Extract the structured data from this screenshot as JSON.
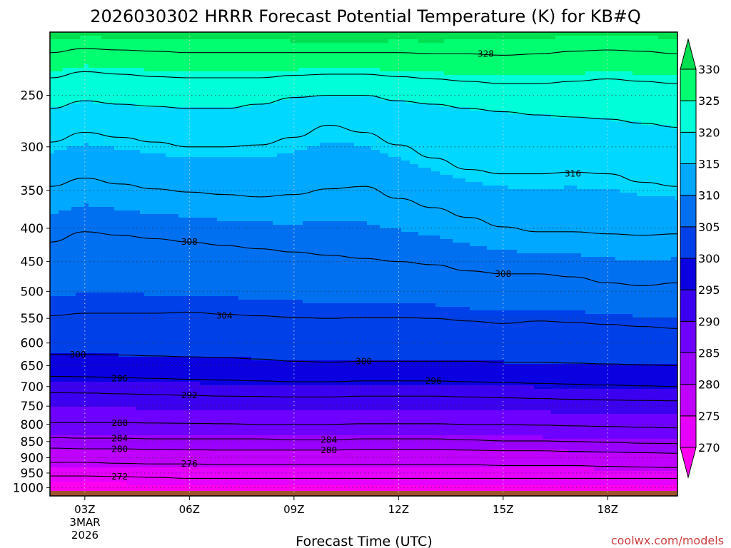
{
  "chart_data": {
    "type": "heatmap",
    "title": "2026030302 HRRR Forecast Potential Temperature (K) for KB#Q",
    "xlabel": "Forecast Time (UTC)",
    "ylabel": "",
    "x_ticks": [
      "03Z",
      "06Z",
      "09Z",
      "12Z",
      "15Z",
      "18Z"
    ],
    "x_ticks_hours": [
      3,
      6,
      9,
      12,
      15,
      18
    ],
    "x_date_label": [
      "3MAR",
      "2026"
    ],
    "xlim_hours": [
      2,
      20
    ],
    "y_ticks": [
      250,
      300,
      350,
      400,
      450,
      500,
      550,
      600,
      650,
      700,
      750,
      800,
      850,
      900,
      950,
      1000
    ],
    "ylim_hpa": [
      1030,
      200
    ],
    "y_scale": "log-pressure",
    "grid": "dotted",
    "colorbar": {
      "levels": [
        270,
        275,
        280,
        285,
        290,
        295,
        300,
        305,
        310,
        315,
        320,
        325,
        330
      ],
      "labels": [
        "270",
        "275",
        "280",
        "285",
        "290",
        "295",
        "300",
        "305",
        "310",
        "315",
        "320",
        "325",
        "330"
      ],
      "colors": [
        "#ff00f0",
        "#e600ff",
        "#c000ff",
        "#9a00ff",
        "#6e00ff",
        "#3c00f0",
        "#0a00e0",
        "#0040e8",
        "#0070f0",
        "#00a8ff",
        "#00d8ff",
        "#00ffd8",
        "#00ff70",
        "#00e050"
      ]
    },
    "hours": [
      2,
      3,
      4,
      5,
      6,
      7,
      8,
      9,
      10,
      11,
      12,
      13,
      14,
      15,
      16,
      17,
      18,
      19,
      20
    ],
    "contours": [
      {
        "theta": 272,
        "p": [
          960,
          960,
          962,
          965,
          968,
          968,
          968,
          968,
          968,
          968,
          968,
          968,
          968,
          968,
          968,
          968,
          968,
          968,
          968
        ]
      },
      {
        "theta": 276,
        "p": [
          915,
          915,
          918,
          920,
          920,
          922,
          922,
          922,
          922,
          922,
          922,
          922,
          922,
          925,
          925,
          925,
          928,
          930,
          932
        ]
      },
      {
        "theta": 280,
        "p": [
          870,
          872,
          872,
          874,
          875,
          876,
          876,
          876,
          876,
          874,
          874,
          874,
          876,
          878,
          878,
          880,
          882,
          884,
          886
        ]
      },
      {
        "theta": 284,
        "p": [
          838,
          840,
          840,
          842,
          842,
          842,
          842,
          845,
          845,
          842,
          842,
          842,
          845,
          848,
          848,
          850,
          852,
          855,
          856
        ]
      },
      {
        "theta": 288,
        "p": [
          795,
          795,
          795,
          796,
          797,
          798,
          800,
          800,
          800,
          798,
          798,
          798,
          800,
          800,
          802,
          804,
          806,
          808,
          810
        ]
      },
      {
        "theta": 292,
        "p": [
          715,
          716,
          718,
          720,
          722,
          724,
          725,
          726,
          726,
          724,
          724,
          724,
          726,
          728,
          730,
          732,
          734,
          735,
          736
        ]
      },
      {
        "theta": 296,
        "p": [
          675,
          676,
          678,
          680,
          682,
          684,
          686,
          688,
          688,
          686,
          686,
          686,
          688,
          690,
          692,
          694,
          696,
          698,
          700
        ]
      },
      {
        "theta": 300,
        "p": [
          625,
          625,
          626,
          628,
          630,
          632,
          635,
          640,
          642,
          640,
          640,
          640,
          640,
          642,
          642,
          644,
          646,
          648,
          650
        ]
      },
      {
        "theta": 304,
        "p": [
          545,
          540,
          540,
          540,
          538,
          542,
          545,
          548,
          550,
          548,
          548,
          550,
          555,
          560,
          555,
          558,
          562,
          566,
          570
        ]
      },
      {
        "theta": 308,
        "p": [
          420,
          405,
          410,
          415,
          420,
          425,
          430,
          435,
          440,
          445,
          450,
          455,
          465,
          470,
          470,
          475,
          485,
          490,
          485
        ]
      },
      {
        "theta": 312,
        "p": [
          345,
          335,
          342,
          348,
          352,
          355,
          358,
          355,
          348,
          345,
          360,
          372,
          385,
          398,
          405,
          405,
          408,
          410,
          408
        ]
      },
      {
        "theta": 316,
        "p": [
          295,
          285,
          290,
          295,
          300,
          300,
          298,
          290,
          278,
          285,
          298,
          312,
          325,
          330,
          330,
          328,
          330,
          340,
          345
        ]
      },
      {
        "theta": 320,
        "p": [
          262,
          255,
          258,
          260,
          262,
          262,
          258,
          252,
          250,
          250,
          255,
          258,
          262,
          265,
          268,
          270,
          272,
          276,
          280
        ]
      },
      {
        "theta": 324,
        "p": [
          235,
          230,
          232,
          234,
          235,
          235,
          235,
          233,
          232,
          232,
          234,
          236,
          238,
          240,
          240,
          238,
          236,
          238,
          240
        ]
      },
      {
        "theta": 328,
        "p": [
          215,
          212,
          213,
          214,
          215,
          215,
          215,
          215,
          215,
          215,
          215,
          216,
          216,
          217,
          216,
          214,
          213,
          214,
          216
        ]
      }
    ],
    "contour_labels": [
      {
        "text": "328",
        "hour": 14.5,
        "p": 216
      },
      {
        "text": "316",
        "hour": 17,
        "p": 330
      },
      {
        "text": "308",
        "hour": 6,
        "p": 420
      },
      {
        "text": "308",
        "hour": 15,
        "p": 470
      },
      {
        "text": "304",
        "hour": 7,
        "p": 545
      },
      {
        "text": "300",
        "hour": 2.8,
        "p": 625
      },
      {
        "text": "300",
        "hour": 11,
        "p": 640
      },
      {
        "text": "296",
        "hour": 4,
        "p": 680
      },
      {
        "text": "296",
        "hour": 13,
        "p": 686
      },
      {
        "text": "292",
        "hour": 6,
        "p": 722
      },
      {
        "text": "288",
        "hour": 4,
        "p": 796
      },
      {
        "text": "284",
        "hour": 4,
        "p": 841
      },
      {
        "text": "284",
        "hour": 10,
        "p": 845
      },
      {
        "text": "280",
        "hour": 4,
        "p": 873
      },
      {
        "text": "280",
        "hour": 10,
        "p": 876
      },
      {
        "text": "276",
        "hour": 6,
        "p": 920
      },
      {
        "text": "272",
        "hour": 4,
        "p": 962
      }
    ],
    "credit": "coolwx.com/models"
  }
}
